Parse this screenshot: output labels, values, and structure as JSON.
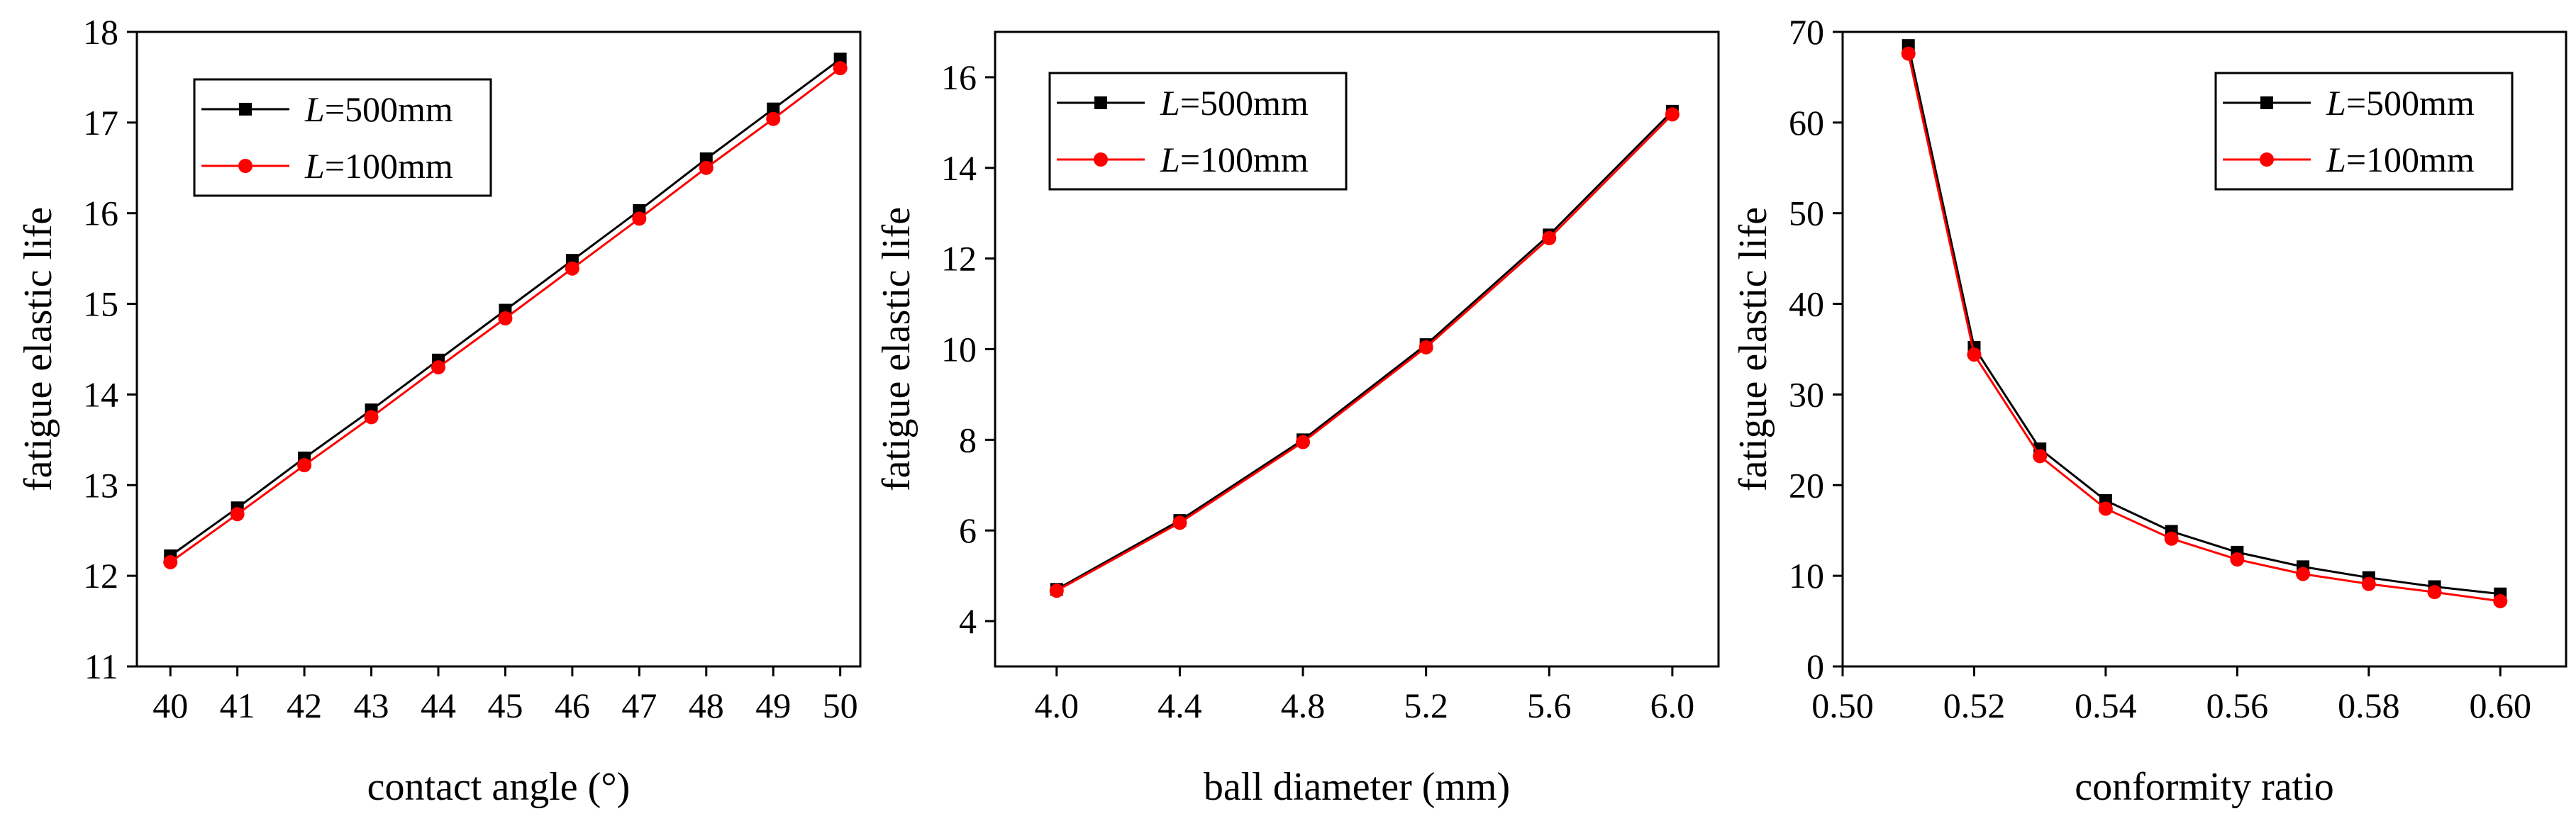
{
  "chart_data": [
    {
      "type": "line",
      "title": "",
      "xlabel": "contact angle (°)",
      "ylabel": "fatigue elastic life",
      "xlim": [
        39.5,
        50.3
      ],
      "ylim": [
        11,
        18
      ],
      "xticks": [
        40,
        41,
        42,
        43,
        44,
        45,
        46,
        47,
        48,
        49,
        50
      ],
      "xtick_labels": [
        "40",
        "41",
        "42",
        "43",
        "44",
        "45",
        "46",
        "47",
        "48",
        "49",
        "50"
      ],
      "yticks": [
        11,
        12,
        13,
        14,
        15,
        16,
        17,
        18
      ],
      "ytick_labels": [
        "11",
        "12",
        "13",
        "14",
        "15",
        "16",
        "17",
        "18"
      ],
      "x": [
        40,
        41,
        42,
        43,
        44,
        45,
        46,
        47,
        48,
        49,
        50
      ],
      "series": [
        {
          "name": "L=500mm",
          "legend_italic": "L",
          "legend_rest": "=500mm",
          "color": "#000000",
          "marker": "square",
          "values": [
            12.22,
            12.75,
            13.3,
            13.83,
            14.38,
            14.93,
            15.48,
            16.03,
            16.6,
            17.15,
            17.7
          ]
        },
        {
          "name": "L=100mm",
          "legend_italic": "L",
          "legend_rest": "=100mm",
          "color": "#ff0000",
          "marker": "circle",
          "values": [
            12.15,
            12.68,
            13.22,
            13.75,
            14.3,
            14.84,
            15.39,
            15.94,
            16.5,
            17.04,
            17.6
          ]
        }
      ],
      "legend_position": "top-left"
    },
    {
      "type": "line",
      "title": "",
      "xlabel": "ball diameter (mm)",
      "ylabel": "fatigue elastic life",
      "xlim": [
        3.8,
        6.15
      ],
      "ylim": [
        3,
        17
      ],
      "xticks": [
        4.0,
        4.4,
        4.8,
        5.2,
        5.6,
        6.0
      ],
      "xtick_labels": [
        "4.0",
        "4.4",
        "4.8",
        "5.2",
        "5.6",
        "6.0"
      ],
      "yticks": [
        4,
        6,
        8,
        10,
        12,
        14,
        16
      ],
      "ytick_labels": [
        "4",
        "6",
        "8",
        "10",
        "12",
        "14",
        "16"
      ],
      "x": [
        4.0,
        4.4,
        4.8,
        5.2,
        5.6,
        6.0
      ],
      "series": [
        {
          "name": "L=500mm",
          "legend_italic": "L",
          "legend_rest": "=500mm",
          "color": "#000000",
          "marker": "square",
          "values": [
            4.7,
            6.22,
            8.0,
            10.1,
            12.52,
            15.25
          ]
        },
        {
          "name": "L=100mm",
          "legend_italic": "L",
          "legend_rest": "=100mm",
          "color": "#ff0000",
          "marker": "circle",
          "values": [
            4.67,
            6.17,
            7.95,
            10.04,
            12.45,
            15.18
          ]
        }
      ],
      "legend_position": "top-left"
    },
    {
      "type": "line",
      "title": "",
      "xlabel": "conformity ratio",
      "ylabel": "fatigue elastic life",
      "xlim": [
        0.5,
        0.61
      ],
      "ylim": [
        0,
        70
      ],
      "xticks": [
        0.5,
        0.52,
        0.54,
        0.56,
        0.58,
        0.6
      ],
      "xtick_labels": [
        "0.50",
        "0.52",
        "0.54",
        "0.56",
        "0.58",
        "0.60"
      ],
      "yticks": [
        0,
        10,
        20,
        30,
        40,
        50,
        60,
        70
      ],
      "ytick_labels": [
        "0",
        "10",
        "20",
        "30",
        "40",
        "50",
        "60",
        "70"
      ],
      "x": [
        0.51,
        0.52,
        0.53,
        0.54,
        0.55,
        0.56,
        0.57,
        0.58,
        0.59,
        0.6
      ],
      "series": [
        {
          "name": "L=500mm",
          "legend_italic": "L",
          "legend_rest": "=500mm",
          "color": "#000000",
          "marker": "square",
          "values": [
            68.5,
            35.2,
            24.0,
            18.3,
            14.9,
            12.6,
            11.0,
            9.8,
            8.8,
            8.0
          ]
        },
        {
          "name": "L=100mm",
          "legend_italic": "L",
          "legend_rest": "=100mm",
          "color": "#ff0000",
          "marker": "circle",
          "values": [
            67.6,
            34.4,
            23.2,
            17.4,
            14.1,
            11.8,
            10.2,
            9.1,
            8.2,
            7.2
          ]
        }
      ],
      "legend_position": "top-right"
    }
  ]
}
